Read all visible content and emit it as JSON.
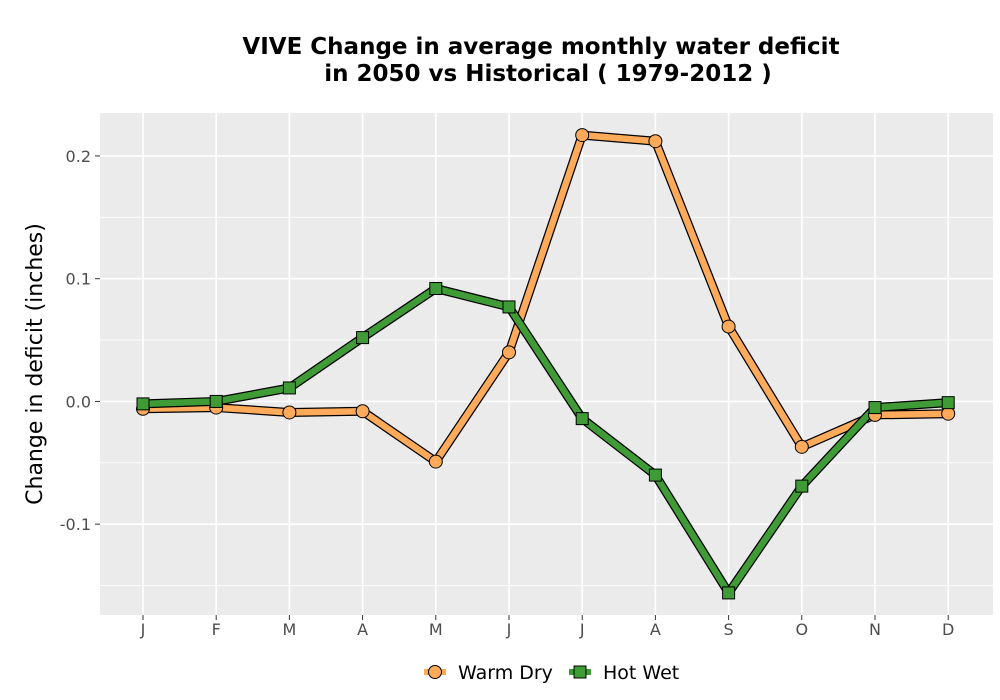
{
  "chart_data": {
    "type": "line",
    "title_line1": "VIVE  Change in average monthly water deficit",
    "title_line2": "in 2050 vs Historical ( 1979-2012 )",
    "ylabel": "Change in deficit (inches)",
    "xlabel": "",
    "categories": [
      "J",
      "F",
      "M",
      "A",
      "M",
      "J",
      "J",
      "A",
      "S",
      "O",
      "N",
      "D"
    ],
    "y_ticks": [
      -0.1,
      0.0,
      0.1,
      0.2
    ],
    "y_tick_labels": [
      "-0.1",
      "0.0",
      "0.1",
      "0.2"
    ],
    "ylim": [
      -0.174,
      0.235
    ],
    "grid": true,
    "legend_position": "bottom",
    "panel_color": "#ebebeb",
    "series": [
      {
        "name": "Warm Dry",
        "marker": "circle",
        "color": "#fdaa5a",
        "values": [
          -0.006,
          -0.005,
          -0.009,
          -0.008,
          -0.049,
          0.04,
          0.217,
          0.212,
          0.061,
          -0.037,
          -0.011,
          -0.01
        ]
      },
      {
        "name": "Hot Wet",
        "marker": "square",
        "color": "#3e9b35",
        "values": [
          -0.002,
          0.0,
          0.011,
          0.052,
          0.092,
          0.077,
          -0.014,
          -0.06,
          -0.156,
          -0.069,
          -0.005,
          -0.001
        ]
      }
    ]
  }
}
